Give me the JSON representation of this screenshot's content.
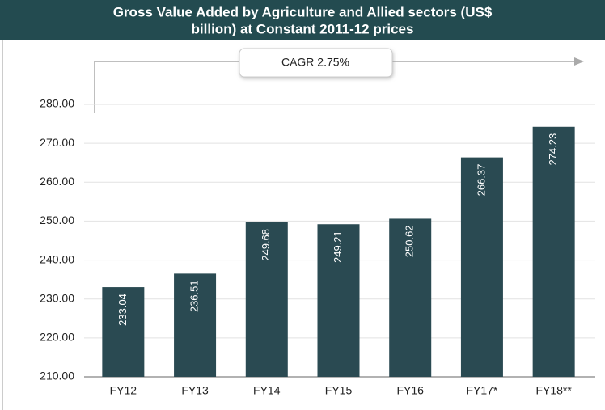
{
  "chart_data": {
    "type": "bar",
    "title": "Gross Value Added by Agriculture and Allied sectors (US$ billion) at Constant 2011-12 prices",
    "title_lines": [
      "Gross Value Added by Agriculture and Allied sectors (US$",
      "billion) at Constant 2011-12 prices"
    ],
    "annotation": "CAGR 2.75%",
    "categories": [
      "FY12",
      "FY13",
      "FY14",
      "FY15",
      "FY16",
      "FY17*",
      "FY18**"
    ],
    "values": [
      233.04,
      236.51,
      249.68,
      249.21,
      250.62,
      266.37,
      274.23
    ],
    "color": "#2a4a52",
    "ylim": [
      210,
      280
    ],
    "yticks": [
      {
        "value": 210,
        "label": "210.00"
      },
      {
        "value": 220,
        "label": "220.00"
      },
      {
        "value": 230,
        "label": "230.00"
      },
      {
        "value": 240,
        "label": "240.00"
      },
      {
        "value": 250,
        "label": "250.00"
      },
      {
        "value": 260,
        "label": "260.00"
      },
      {
        "value": 270,
        "label": "270.00"
      },
      {
        "value": 280,
        "label": "280.00"
      }
    ],
    "grid": true
  }
}
